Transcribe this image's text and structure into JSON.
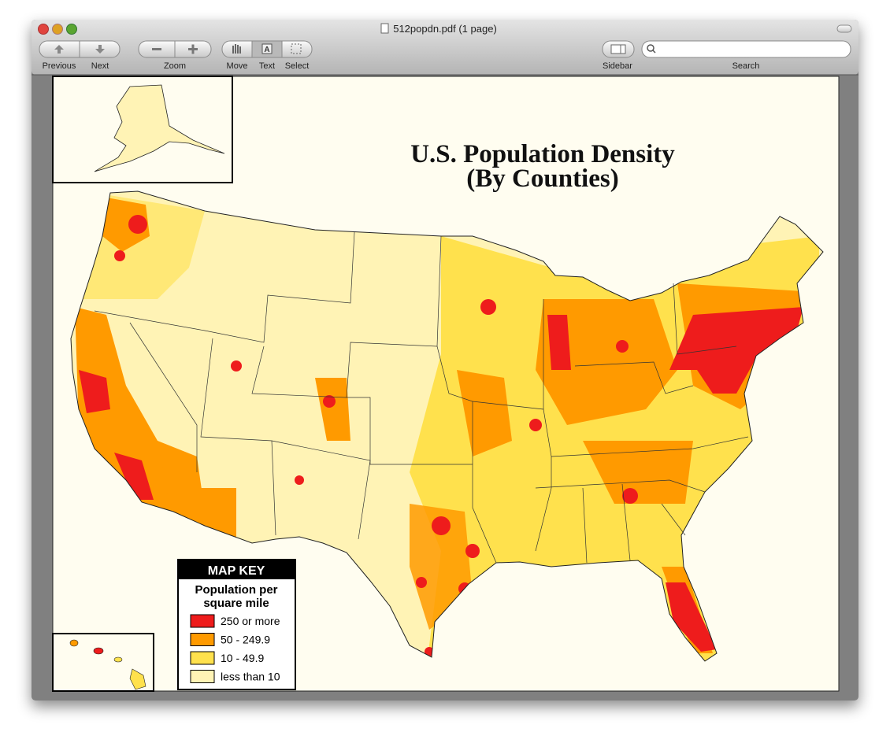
{
  "window": {
    "title": "512popdn.pdf (1 page)"
  },
  "toolbar": {
    "buttons": [
      "Previous",
      "Next",
      "Zoom",
      "Move",
      "Text",
      "Select",
      "Sidebar",
      "Search"
    ]
  },
  "document": {
    "title": [
      "U.S. Population Density",
      "(By Counties)"
    ],
    "map_key": {
      "title": "MAP KEY",
      "subtitle": [
        "Population per",
        "square mile"
      ],
      "items": [
        {
          "label": "250 or more",
          "color": "#ee1c1c"
        },
        {
          "label": "50 - 249.9",
          "color": "#ff9a00"
        },
        {
          "label": "10 - 49.9",
          "color": "#ffe14d"
        },
        {
          "label": "less than 10",
          "color": "#fff3b5"
        }
      ]
    }
  }
}
